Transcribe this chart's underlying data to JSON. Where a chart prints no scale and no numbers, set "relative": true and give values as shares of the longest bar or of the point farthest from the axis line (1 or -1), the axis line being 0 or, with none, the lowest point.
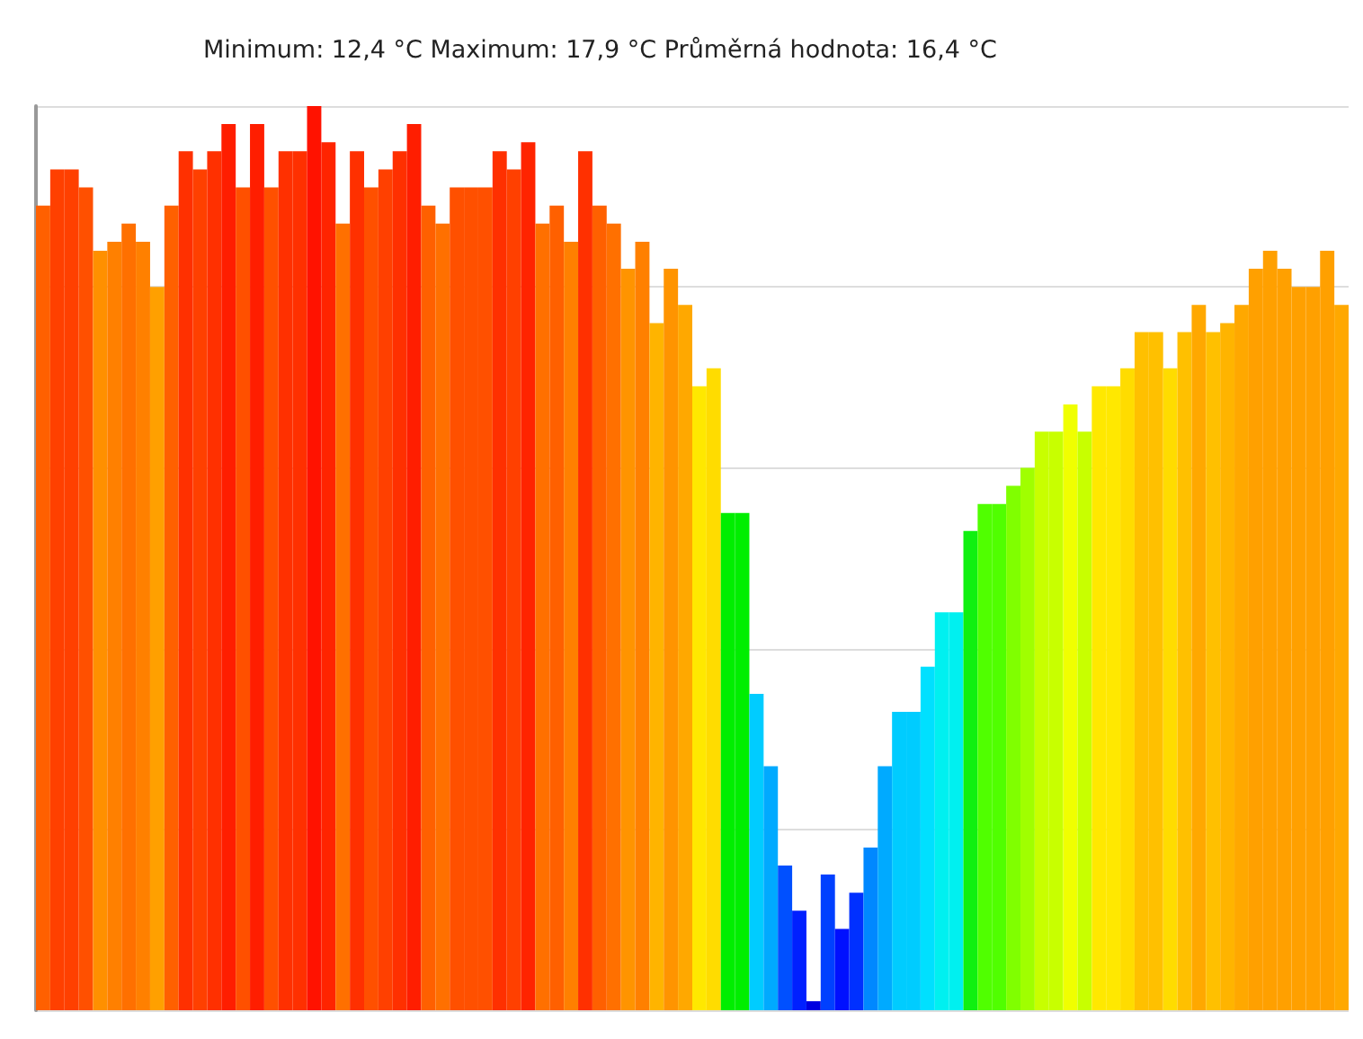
{
  "chart_data": {
    "type": "bar",
    "title": "Minimum: 12,4 °C Maximum: 17,9 °C Průměrná hodnota: 16,4 °C",
    "relative": true,
    "grid": "y",
    "categories": [
      null,
      null,
      null,
      null,
      null,
      null,
      null,
      null,
      null,
      null,
      null,
      null,
      null,
      null,
      null,
      null,
      null,
      null,
      null,
      null,
      null,
      null,
      null,
      null,
      null,
      null,
      null,
      null,
      null,
      null,
      null,
      null,
      null,
      null,
      null,
      null,
      null,
      null,
      null,
      null,
      null,
      null,
      null,
      null,
      null,
      null,
      null,
      null,
      null,
      null,
      null,
      null,
      null,
      null,
      null,
      null,
      null,
      null,
      null,
      null,
      null,
      null,
      null,
      null,
      null,
      null,
      null,
      null,
      null,
      null,
      null,
      null,
      null,
      null,
      null,
      null,
      null,
      null,
      null,
      null,
      null,
      null,
      null,
      null,
      null,
      null,
      null,
      null,
      null,
      null,
      null,
      null
    ],
    "values": [
      0.89,
      0.93,
      0.93,
      0.91,
      0.84,
      0.85,
      0.87,
      0.85,
      0.8,
      0.89,
      0.95,
      0.93,
      0.95,
      0.98,
      0.91,
      0.98,
      0.91,
      0.95,
      0.95,
      1,
      0.96,
      0.87,
      0.95,
      0.91,
      0.93,
      0.95,
      0.98,
      0.89,
      0.87,
      0.91,
      0.91,
      0.91,
      0.95,
      0.93,
      0.96,
      0.87,
      0.89,
      0.85,
      0.95,
      0.89,
      0.87,
      0.82,
      0.85,
      0.76,
      0.82,
      0.78,
      0.69,
      0.71,
      0.55,
      0.55,
      0.35,
      0.27,
      0.16,
      0.11,
      0.01,
      0.15,
      0.09,
      0.13,
      0.18,
      0.27,
      0.33,
      0.33,
      0.38,
      0.44,
      0.44,
      0.53,
      0.56,
      0.56,
      0.58,
      0.6,
      0.64,
      0.64,
      0.67,
      0.64,
      0.69,
      0.69,
      0.71,
      0.75,
      0.75,
      0.71,
      0.75,
      0.78,
      0.75,
      0.76,
      0.78,
      0.82,
      0.84,
      0.82,
      0.8,
      0.8,
      0.84,
      0.78
    ],
    "colors": [
      "#ff6000",
      "#ff4000",
      "#ff4000",
      "#ff5000",
      "#ff9000",
      "#ff8000",
      "#ff7000",
      "#ff8000",
      "#ffa000",
      "#ff6000",
      "#ff3000",
      "#ff4000",
      "#ff3000",
      "#ff1e00",
      "#ff5000",
      "#ff1e00",
      "#ff5000",
      "#ff3000",
      "#ff3000",
      "#ff1200",
      "#ff2400",
      "#ff7000",
      "#ff3000",
      "#ff5000",
      "#ff4000",
      "#ff3000",
      "#ff1e00",
      "#ff6000",
      "#ff7000",
      "#ff5000",
      "#ff5000",
      "#ff5000",
      "#ff3000",
      "#ff4000",
      "#ff2400",
      "#ff7000",
      "#ff6000",
      "#ff8000",
      "#ff3000",
      "#ff6000",
      "#ff7000",
      "#ff9400",
      "#ff8000",
      "#ffb400",
      "#ff9400",
      "#ffa800",
      "#ffe800",
      "#ffdc00",
      "#00ee00",
      "#00ee00",
      "#00ccff",
      "#00aaff",
      "#0050ff",
      "#0020ff",
      "#0000e0",
      "#0040ff",
      "#0010ff",
      "#0030ff",
      "#0088ff",
      "#00aaff",
      "#00ccff",
      "#00ccff",
      "#00e0ff",
      "#00f0f0",
      "#00f0f0",
      "#10f010",
      "#50ff00",
      "#50ff00",
      "#80ff00",
      "#a0ff00",
      "#c8ff00",
      "#c8ff00",
      "#f0ff00",
      "#c8ff00",
      "#ffe800",
      "#ffe800",
      "#ffdc00",
      "#ffc000",
      "#ffc000",
      "#ffdc00",
      "#ffc000",
      "#ffa800",
      "#ffc000",
      "#ffb400",
      "#ffa800",
      "#ffa000",
      "#ffa000",
      "#ffa000",
      "#ffa000",
      "#ffa000",
      "#ffa000",
      "#ffa800"
    ]
  }
}
